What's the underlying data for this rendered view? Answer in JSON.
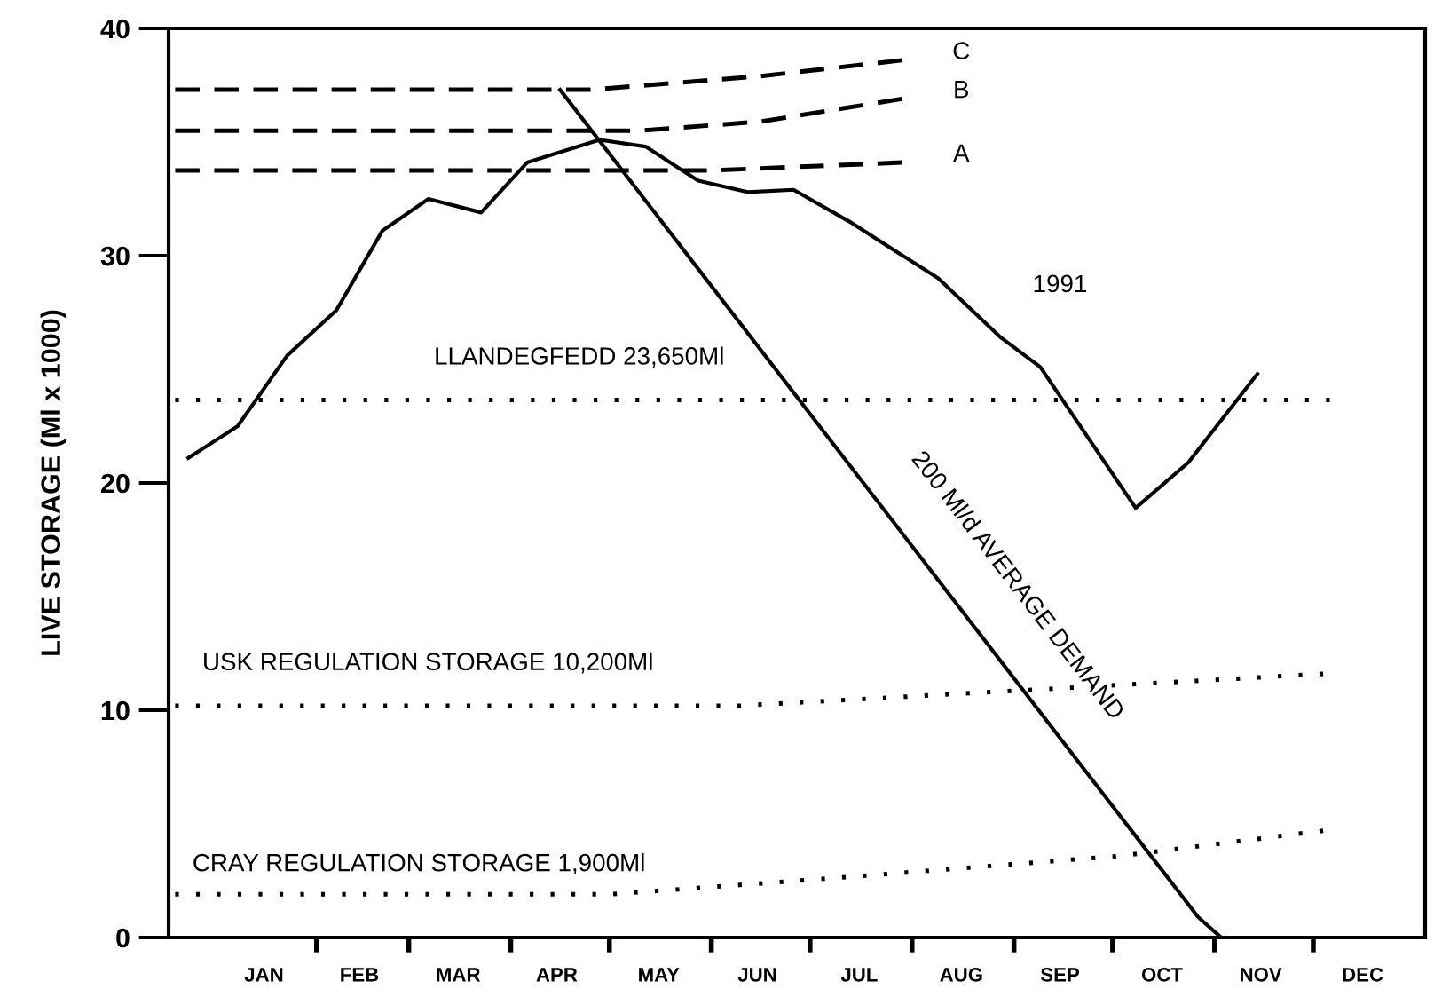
{
  "chart_data": {
    "type": "line",
    "ylabel": "LIVE STORAGE (Ml x 1000)",
    "xlim": [
      "1990-12-18",
      "1992-01-04"
    ],
    "ylim": [
      0,
      40
    ],
    "yticks": [
      0,
      10,
      20,
      30,
      40
    ],
    "xticks": [
      {
        "value": "1991-01-16",
        "label": "JAN"
      },
      {
        "value": "1991-02-14",
        "label": "FEB"
      },
      {
        "value": "1991-03-16",
        "label": "MAR"
      },
      {
        "value": "1991-04-15",
        "label": "APR"
      },
      {
        "value": "1991-05-16",
        "label": "MAY"
      },
      {
        "value": "1991-06-15",
        "label": "JUN"
      },
      {
        "value": "1991-07-16",
        "label": "JUL"
      },
      {
        "value": "1991-08-16",
        "label": "AUG"
      },
      {
        "value": "1991-09-15",
        "label": "SEP"
      },
      {
        "value": "1991-10-16",
        "label": "OCT"
      },
      {
        "value": "1991-11-15",
        "label": "NOV"
      },
      {
        "value": "1991-12-16",
        "label": "DEC"
      },
      {
        "value": "1991-02-01",
        "label": null
      },
      {
        "value": "1991-03-01",
        "label": null
      },
      {
        "value": "1991-04-01",
        "label": null
      },
      {
        "value": "1991-05-01",
        "label": null
      },
      {
        "value": "1991-06-01",
        "label": null
      },
      {
        "value": "1991-07-01",
        "label": null
      },
      {
        "value": "1991-08-01",
        "label": null
      },
      {
        "value": "1991-09-01",
        "label": null
      },
      {
        "value": "1991-10-01",
        "label": null
      },
      {
        "value": "1991-11-01",
        "label": null
      },
      {
        "value": "1991-12-01",
        "label": null
      }
    ],
    "grid": false,
    "series": [
      {
        "name": "1991",
        "color": "#000000",
        "line_style": "solid",
        "x": [
          "1990-12-24",
          "1991-01-08",
          "1991-01-23",
          "1991-02-07",
          "1991-02-21",
          "1991-03-07",
          "1991-03-23",
          "1991-04-06",
          "1991-04-28",
          "1991-05-12",
          "1991-05-28",
          "1991-06-12",
          "1991-06-26",
          "1991-07-13",
          "1991-08-09",
          "1991-08-28",
          "1991-09-09",
          "1991-10-08",
          "1991-10-24",
          "1991-11-14"
        ],
        "values": [
          21.1,
          22.5,
          25.6,
          27.6,
          31.1,
          32.5,
          31.9,
          34.1,
          35.1,
          34.8,
          33.3,
          32.8,
          32.9,
          31.5,
          29.0,
          26.4,
          25.1,
          18.9,
          20.9,
          24.8
        ]
      },
      {
        "name": "200 Ml/d AVERAGE DEMAND",
        "color": "#000000",
        "line_style": "solid",
        "x": [
          "1991-04-16",
          "1991-10-27",
          "1991-11-03"
        ],
        "values": [
          37.3,
          0.9,
          0
        ]
      },
      {
        "name": "A",
        "color": "#000000",
        "line_style": "dashed",
        "x": [
          "1990-12-20",
          "1991-06-01",
          "1991-07-29"
        ],
        "values": [
          33.75,
          33.75,
          34.1
        ]
      },
      {
        "name": "B",
        "color": "#000000",
        "line_style": "dashed",
        "x": [
          "1990-12-20",
          "1991-05-10",
          "1991-06-16",
          "1991-07-29"
        ],
        "values": [
          35.5,
          35.5,
          35.9,
          36.9
        ]
      },
      {
        "name": "C",
        "color": "#000000",
        "line_style": "dashed",
        "x": [
          "1990-12-20",
          "1991-04-25",
          "1991-06-16",
          "1991-07-29"
        ],
        "values": [
          37.3,
          37.3,
          37.9,
          38.6
        ]
      },
      {
        "name": "LLANDEGFEDD 23,650Ml",
        "color": "#000000",
        "line_style": "dotted",
        "x": [
          "1990-12-20",
          "1991-12-06"
        ],
        "values": [
          23.65,
          23.65
        ]
      },
      {
        "name": "USK REGULATION STORAGE 10,200Ml",
        "color": "#000000",
        "line_style": "dotted",
        "x": [
          "1990-12-20",
          "1991-06-10",
          "1991-12-04"
        ],
        "values": [
          10.2,
          10.2,
          11.6
        ]
      },
      {
        "name": "CRAY REGULATION STORAGE 1,900Ml",
        "color": "#000000",
        "line_style": "dotted",
        "x": [
          "1990-12-20",
          "1991-05-01",
          "1991-07-07",
          "1991-10-04",
          "1991-12-04"
        ],
        "values": [
          1.9,
          1.9,
          2.6,
          3.6,
          4.7
        ]
      }
    ]
  }
}
